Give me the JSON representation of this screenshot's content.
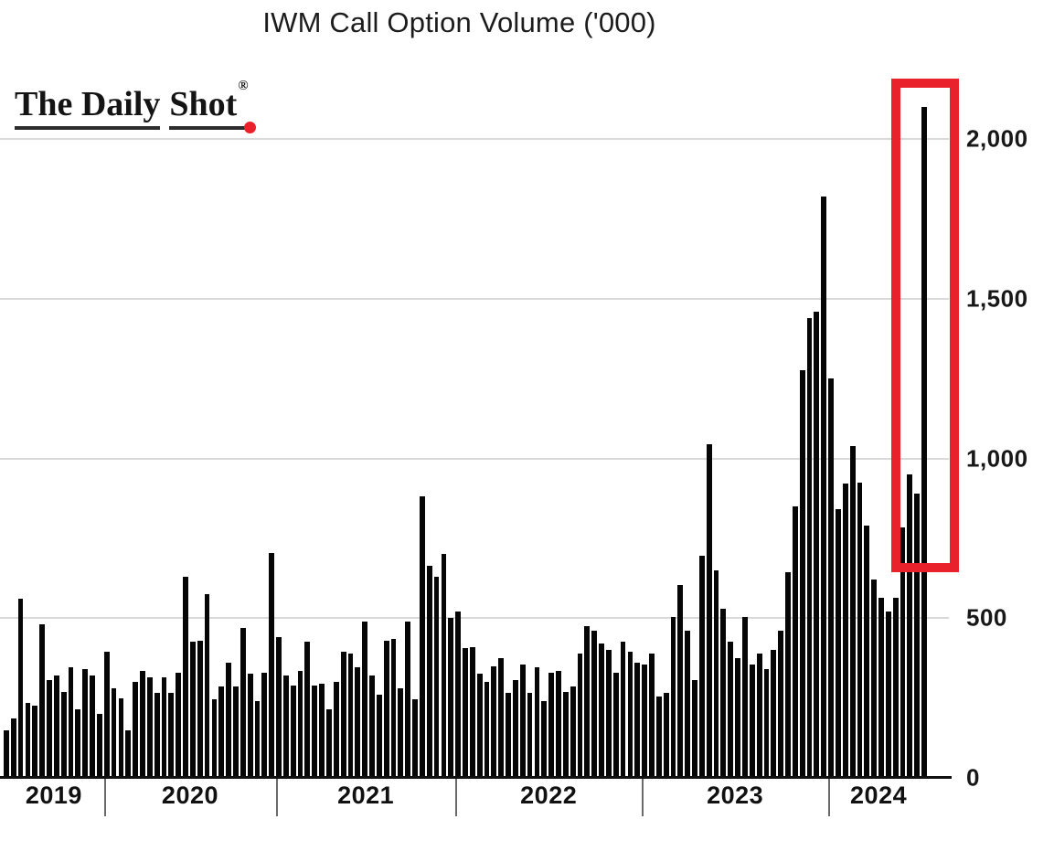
{
  "title": "IWM Call Option Volume ('000)",
  "logo": {
    "part1": "The Daily",
    "part2": "Shot",
    "registered": "®",
    "dot_color": "#e8212b",
    "text_color": "#141414"
  },
  "chart_data": {
    "type": "bar",
    "title": "IWM Call Option Volume ('000)",
    "units": "thousands of option contracts",
    "bar_color": "#060606",
    "grid": true,
    "gridline_color": "#d9d9d9",
    "y_axis": {
      "side": "right",
      "min": 0,
      "max": 2200,
      "ticks": [
        {
          "value": 0,
          "label": "0"
        },
        {
          "value": 500,
          "label": "500"
        },
        {
          "value": 1000,
          "label": "1,000"
        },
        {
          "value": 1500,
          "label": "1,500"
        },
        {
          "value": 2000,
          "label": "2,000"
        }
      ]
    },
    "x_axis": {
      "unit": "year",
      "tick_labels": [
        "2019",
        "2020",
        "2021",
        "2022",
        "2023",
        "2024"
      ]
    },
    "series": [
      {
        "year": "2019",
        "values": [
          150,
          185,
          560,
          235,
          225,
          480,
          305,
          320,
          270,
          345,
          215,
          340,
          320,
          200
        ]
      },
      {
        "year": "2020",
        "values": [
          395,
          280,
          250,
          150,
          300,
          335,
          315,
          265,
          315,
          265,
          330,
          630,
          425,
          430,
          575,
          245,
          285,
          360,
          285,
          470,
          325,
          240,
          330,
          705
        ]
      },
      {
        "year": "2021",
        "values": [
          440,
          320,
          290,
          335,
          425,
          290,
          295,
          215,
          300,
          395,
          390,
          345,
          490,
          320,
          260,
          430,
          435,
          280,
          490,
          245,
          880,
          665,
          630,
          700,
          500
        ]
      },
      {
        "year": "2022",
        "values": [
          520,
          405,
          410,
          325,
          300,
          350,
          375,
          265,
          305,
          355,
          265,
          345,
          240,
          330,
          335,
          270,
          285,
          390,
          475,
          460,
          420,
          400,
          330,
          425,
          395,
          360
        ]
      },
      {
        "year": "2023",
        "values": [
          355,
          390,
          255,
          265,
          505,
          605,
          460,
          305,
          695,
          1045,
          650,
          530,
          425,
          375,
          505,
          355,
          390,
          340,
          400,
          460,
          645,
          850,
          1275,
          1440,
          1460,
          1820
        ]
      },
      {
        "year": "2024",
        "values": [
          1250,
          840,
          920,
          1040,
          925,
          790,
          620,
          565,
          520,
          565,
          785,
          950,
          890,
          2100
        ]
      }
    ],
    "annotation": {
      "shape": "rectangle",
      "color": "#e8212b",
      "covers": "final 2024 bars including the 2,100 spike"
    }
  }
}
